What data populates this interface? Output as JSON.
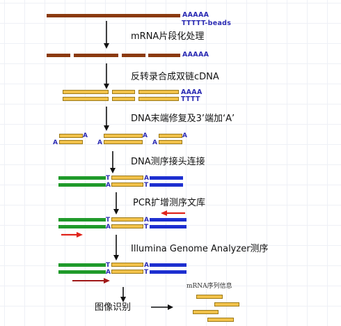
{
  "polyA": "AAAAA",
  "polyT_beads": "TTTTT-beads",
  "step1": "mRNA片段化处理",
  "step2": "反转录合成双链cDNA",
  "cdna_top": "AAAA",
  "cdna_bottom": "TTTT",
  "step3": "DNA末端修复及3’端加‘A’",
  "base_A": "A",
  "base_T": "T",
  "step4": "DNA测序接头连接",
  "step5": "PCR扩增测序文库",
  "step6": "Illumina Genome Analyzer测序",
  "step7": "图像识别",
  "result_label": "mRNA序列信息",
  "colors": {
    "mrna": "#8b3a0e",
    "cdna_fill": "#f2c24a",
    "adapter_green": "#1f9a2a",
    "adapter_blue": "#1d2fd0",
    "primer_arrow": "#e0241b",
    "seq_arrow": "#a01818",
    "polyA_text": "#2c2cb4"
  }
}
